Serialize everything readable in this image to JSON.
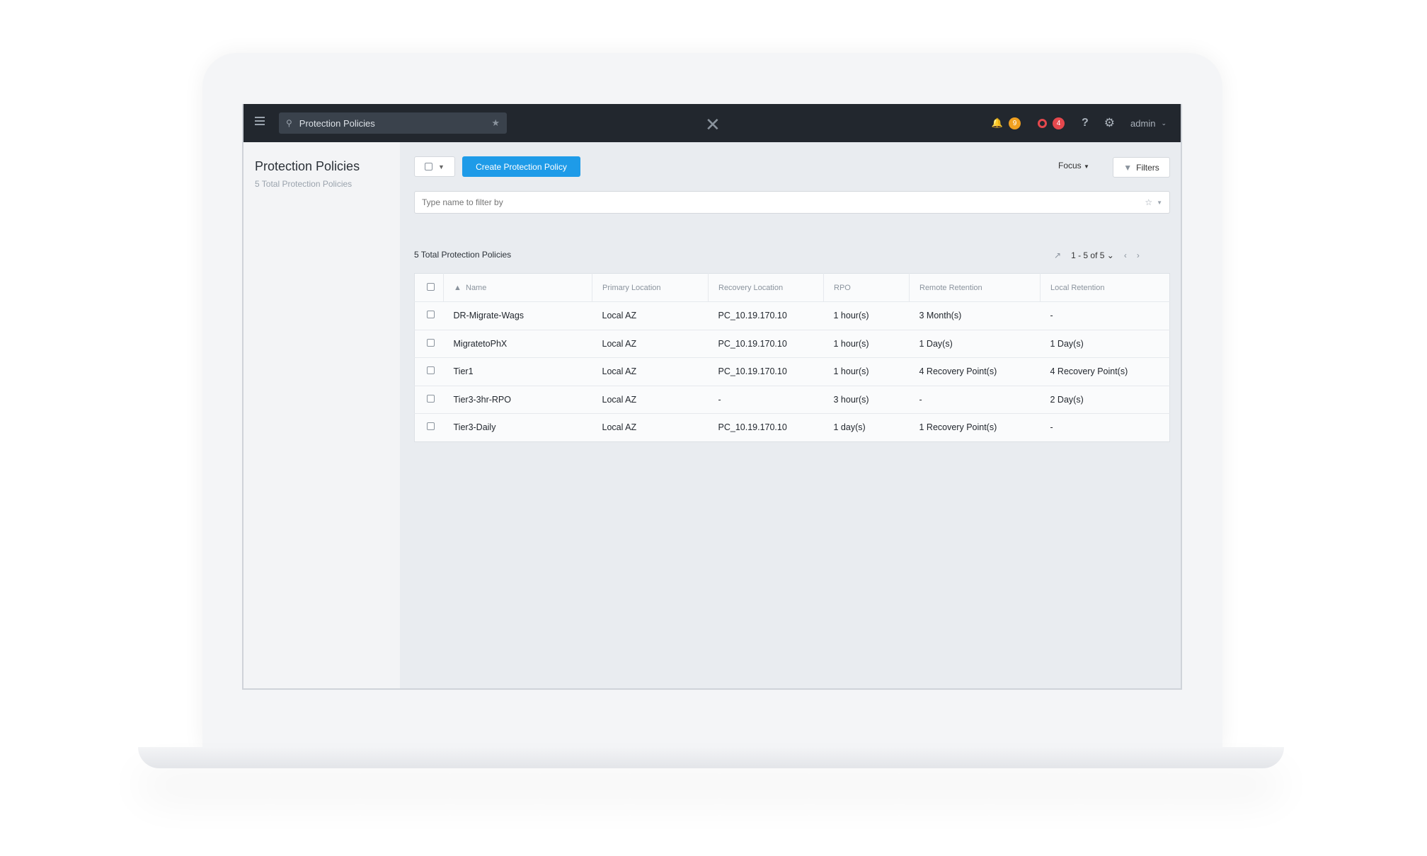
{
  "topbar": {
    "search_value": "Protection Policies",
    "alerts_count": "9",
    "alerts_color": "#f0a020",
    "critical_count": "4",
    "critical_color": "#e5484d",
    "help": "?",
    "user": "admin"
  },
  "sidebar": {
    "title": "Protection Policies",
    "subtitle": "5 Total Protection Policies"
  },
  "toolbar": {
    "create_label": "Create Protection Policy",
    "focus_label": "Focus",
    "filters_label": "Filters",
    "filter_placeholder": "Type name to filter by"
  },
  "list": {
    "total": "5 Total Protection Policies",
    "pagination": "1 - 5 of 5"
  },
  "table": {
    "columns": [
      "Name",
      "Primary Location",
      "Recovery Location",
      "RPO",
      "Remote Retention",
      "Local Retention"
    ],
    "rows": [
      [
        "DR-Migrate-Wags",
        "Local AZ",
        "PC_10.19.170.10",
        "1 hour(s)",
        "3 Month(s)",
        "-"
      ],
      [
        "MigratetoPhX",
        "Local AZ",
        "PC_10.19.170.10",
        "1 hour(s)",
        "1 Day(s)",
        "1 Day(s)"
      ],
      [
        "Tier1",
        "Local AZ",
        "PC_10.19.170.10",
        "1 hour(s)",
        "4 Recovery Point(s)",
        "4 Recovery Point(s)"
      ],
      [
        "Tier3-3hr-RPO",
        "Local AZ",
        "-",
        "3 hour(s)",
        "-",
        "2 Day(s)"
      ],
      [
        "Tier3-Daily",
        "Local AZ",
        "PC_10.19.170.10",
        "1 day(s)",
        "1 Recovery Point(s)",
        "-"
      ]
    ]
  },
  "accent": "#1e9be8"
}
